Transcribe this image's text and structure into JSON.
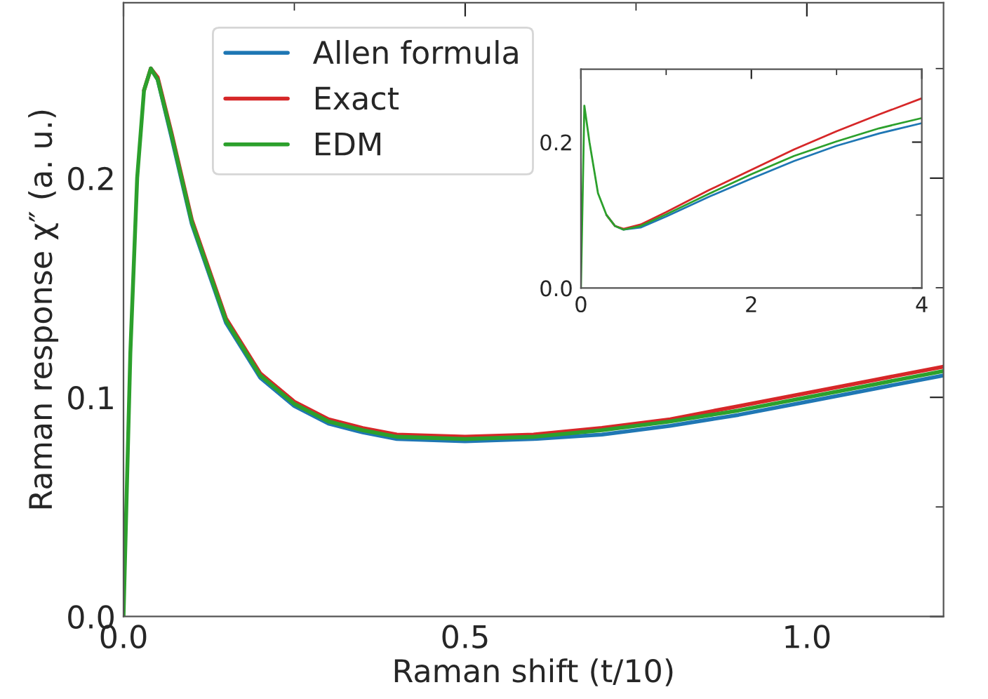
{
  "chart_data": [
    {
      "type": "line",
      "xlabel": "Raman shift (t/10)",
      "ylabel": "Raman response χ″ (a. u.)",
      "legend": "top left",
      "grid": false,
      "marker": "none",
      "line_style": "solid",
      "xlim": [
        0,
        1.2
      ],
      "ylim": [
        0,
        0.28
      ],
      "xticks": [
        {
          "value": 0.0,
          "label": "0.0"
        },
        {
          "value": 0.25,
          "label": null
        },
        {
          "value": 0.5,
          "label": "0.5"
        },
        {
          "value": 0.75,
          "label": null
        },
        {
          "value": 1.0,
          "label": "1.0"
        }
      ],
      "yticks": [
        {
          "value": 0.0,
          "label": "0.0"
        },
        {
          "value": 0.05,
          "label": null
        },
        {
          "value": 0.1,
          "label": "0.1"
        },
        {
          "value": 0.15,
          "label": null
        },
        {
          "value": 0.2,
          "label": "0.2"
        },
        {
          "value": 0.25,
          "label": null
        }
      ],
      "series": [
        {
          "name": "Allen formula",
          "color": "#1f77b4",
          "x": [
            0.04,
            0.05,
            0.07,
            0.1,
            0.15,
            0.2,
            0.25,
            0.3,
            0.35,
            0.4,
            0.5,
            0.6,
            0.7,
            0.8,
            0.9,
            1.0,
            1.1,
            1.2
          ],
          "values": [
            0.25,
            0.245,
            0.219,
            0.179,
            0.134,
            0.109,
            0.096,
            0.088,
            0.084,
            0.081,
            0.08,
            0.081,
            0.083,
            0.087,
            0.092,
            0.098,
            0.104,
            0.11
          ]
        },
        {
          "name": "Exact",
          "color": "#d62728",
          "x": [
            0.03,
            0.04,
            0.05,
            0.07,
            0.1,
            0.15,
            0.2,
            0.25,
            0.3,
            0.35,
            0.4,
            0.5,
            0.6,
            0.7,
            0.8,
            0.9,
            1.0,
            1.1,
            1.2
          ],
          "values": [
            0.24,
            0.25,
            0.246,
            0.221,
            0.181,
            0.136,
            0.111,
            0.098,
            0.09,
            0.086,
            0.083,
            0.082,
            0.083,
            0.086,
            0.09,
            0.096,
            0.102,
            0.108,
            0.114
          ]
        },
        {
          "name": "EDM",
          "color": "#2ca02c",
          "x": [
            0,
            0.01,
            0.02,
            0.03,
            0.04,
            0.05,
            0.07,
            0.1,
            0.15,
            0.2,
            0.25,
            0.3,
            0.35,
            0.4,
            0.5,
            0.6,
            0.7,
            0.8,
            0.9,
            1.0,
            1.1,
            1.2
          ],
          "values": [
            0,
            0.12,
            0.2,
            0.24,
            0.25,
            0.245,
            0.22,
            0.18,
            0.135,
            0.11,
            0.097,
            0.089,
            0.085,
            0.082,
            0.081,
            0.082,
            0.085,
            0.089,
            0.094,
            0.1,
            0.106,
            0.112
          ]
        }
      ]
    },
    {
      "type": "line",
      "grid": false,
      "marker": "none",
      "line_style": "solid",
      "xlim": [
        0,
        4
      ],
      "ylim": [
        0,
        0.3
      ],
      "xticks": [
        0,
        {
          "value": 1,
          "label": null
        },
        2,
        {
          "value": 3,
          "label": null
        },
        4
      ],
      "yticks": [
        {
          "value": 0.0,
          "label": "0.0"
        },
        {
          "value": 0.1,
          "label": null
        },
        {
          "value": 0.2,
          "label": "0.2"
        }
      ],
      "series": [
        {
          "color": "#1f77b4",
          "x": [
            0.3,
            0.4,
            0.5,
            0.7,
            1.0,
            1.5,
            2.0,
            2.5,
            3.0,
            3.5,
            4.0
          ],
          "values": [
            0.1,
            0.085,
            0.08,
            0.083,
            0.098,
            0.125,
            0.15,
            0.174,
            0.195,
            0.212,
            0.226
          ]
        },
        {
          "color": "#d62728",
          "x": [
            0.3,
            0.4,
            0.5,
            0.7,
            1.0,
            1.5,
            2.0,
            2.5,
            3.0,
            3.5,
            4.0
          ],
          "values": [
            0.1,
            0.085,
            0.081,
            0.087,
            0.104,
            0.134,
            0.162,
            0.19,
            0.215,
            0.238,
            0.26
          ]
        },
        {
          "color": "#2ca02c",
          "x": [
            0,
            0.04,
            0.1,
            0.2,
            0.3,
            0.4,
            0.5,
            0.7,
            1.0,
            1.5,
            2.0,
            2.5,
            3.0,
            3.5,
            4.0
          ],
          "values": [
            0,
            0.25,
            0.2,
            0.13,
            0.1,
            0.085,
            0.08,
            0.085,
            0.101,
            0.129,
            0.156,
            0.181,
            0.201,
            0.219,
            0.233
          ]
        }
      ]
    }
  ]
}
